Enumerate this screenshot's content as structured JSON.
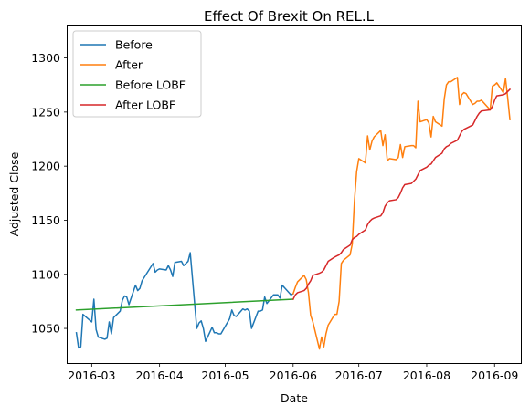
{
  "chart_data": {
    "type": "line",
    "title": "Effect Of Brexit On REL.L",
    "xlabel": "Date",
    "ylabel": "Adjusted Close",
    "x_range": [
      "2016-02-19",
      "2016-09-13"
    ],
    "ylim": [
      1018,
      1330
    ],
    "x_ticks": [
      "2016-03",
      "2016-04",
      "2016-05",
      "2016-06",
      "2016-07",
      "2016-08",
      "2016-09"
    ],
    "y_ticks": [
      1050,
      1100,
      1150,
      1200,
      1250,
      1300
    ],
    "grid": false,
    "legend_position": "top-left",
    "series": [
      {
        "name": "Before",
        "color": "#1f77b4",
        "x": [
          "2016-02-23",
          "2016-02-24",
          "2016-02-25",
          "2016-02-26",
          "2016-03-01",
          "2016-03-02",
          "2016-03-03",
          "2016-03-04",
          "2016-03-07",
          "2016-03-08",
          "2016-03-09",
          "2016-03-10",
          "2016-03-11",
          "2016-03-14",
          "2016-03-15",
          "2016-03-16",
          "2016-03-17",
          "2016-03-18",
          "2016-03-21",
          "2016-03-22",
          "2016-03-23",
          "2016-03-24",
          "2016-03-29",
          "2016-03-30",
          "2016-03-31",
          "2016-04-01",
          "2016-04-04",
          "2016-04-05",
          "2016-04-06",
          "2016-04-07",
          "2016-04-08",
          "2016-04-11",
          "2016-04-12",
          "2016-04-13",
          "2016-04-14",
          "2016-04-15",
          "2016-04-18",
          "2016-04-19",
          "2016-04-20",
          "2016-04-21",
          "2016-04-22",
          "2016-04-25",
          "2016-04-26",
          "2016-04-27",
          "2016-04-28",
          "2016-04-29",
          "2016-05-03",
          "2016-05-04",
          "2016-05-05",
          "2016-05-06",
          "2016-05-09",
          "2016-05-10",
          "2016-05-11",
          "2016-05-12",
          "2016-05-13",
          "2016-05-16",
          "2016-05-17",
          "2016-05-18",
          "2016-05-19",
          "2016-05-20",
          "2016-05-23",
          "2016-05-24",
          "2016-05-25",
          "2016-05-26",
          "2016-05-27",
          "2016-05-31",
          "2016-06-01"
        ],
        "y": [
          1046,
          1032,
          1033,
          1063,
          1056,
          1077,
          1049,
          1042,
          1040,
          1041,
          1056,
          1045,
          1060,
          1066,
          1076,
          1080,
          1079,
          1072,
          1090,
          1085,
          1087,
          1094,
          1110,
          1102,
          1104,
          1105,
          1104,
          1108,
          1104,
          1098,
          1111,
          1112,
          1108,
          1110,
          1112,
          1120,
          1050,
          1055,
          1057,
          1050,
          1038,
          1051,
          1046,
          1046,
          1045,
          1045,
          1059,
          1067,
          1062,
          1061,
          1068,
          1067,
          1068,
          1066,
          1050,
          1066,
          1066,
          1067,
          1079,
          1073,
          1081,
          1081,
          1081,
          1078,
          1090,
          1081,
          1082
        ]
      },
      {
        "name": "After",
        "color": "#ff7f0e",
        "x": [
          "2016-06-01",
          "2016-06-02",
          "2016-06-03",
          "2016-06-06",
          "2016-06-07",
          "2016-06-08",
          "2016-06-09",
          "2016-06-10",
          "2016-06-13",
          "2016-06-14",
          "2016-06-15",
          "2016-06-16",
          "2016-06-17",
          "2016-06-20",
          "2016-06-21",
          "2016-06-22",
          "2016-06-23",
          "2016-06-24",
          "2016-06-27",
          "2016-06-28",
          "2016-06-29",
          "2016-06-30",
          "2016-07-01",
          "2016-07-04",
          "2016-07-05",
          "2016-07-06",
          "2016-07-07",
          "2016-07-08",
          "2016-07-11",
          "2016-07-12",
          "2016-07-13",
          "2016-07-14",
          "2016-07-15",
          "2016-07-18",
          "2016-07-19",
          "2016-07-20",
          "2016-07-21",
          "2016-07-22",
          "2016-07-25",
          "2016-07-26",
          "2016-07-27",
          "2016-07-28",
          "2016-07-29",
          "2016-08-01",
          "2016-08-02",
          "2016-08-03",
          "2016-08-04",
          "2016-08-05",
          "2016-08-08",
          "2016-08-09",
          "2016-08-10",
          "2016-08-11",
          "2016-08-12",
          "2016-08-15",
          "2016-08-16",
          "2016-08-17",
          "2016-08-18",
          "2016-08-19",
          "2016-08-22",
          "2016-08-23",
          "2016-08-24",
          "2016-08-25",
          "2016-08-26",
          "2016-08-30",
          "2016-08-31",
          "2016-09-01",
          "2016-09-02",
          "2016-09-05",
          "2016-09-06",
          "2016-09-07",
          "2016-09-08"
        ],
        "y": [
          1082,
          1088,
          1093,
          1099,
          1095,
          1083,
          1062,
          1056,
          1031,
          1042,
          1033,
          1045,
          1053,
          1063,
          1063,
          1075,
          1110,
          1113,
          1118,
          1128,
          1168,
          1195,
          1207,
          1203,
          1228,
          1215,
          1223,
          1227,
          1233,
          1219,
          1229,
          1205,
          1207,
          1206,
          1208,
          1220,
          1208,
          1218,
          1219,
          1219,
          1217,
          1260,
          1241,
          1243,
          1240,
          1227,
          1246,
          1241,
          1237,
          1262,
          1275,
          1278,
          1278,
          1282,
          1257,
          1266,
          1268,
          1267,
          1257,
          1258,
          1260,
          1260,
          1261,
          1252,
          1274,
          1275,
          1277,
          1268,
          1281,
          1263,
          1243
        ]
      },
      {
        "name": "Before LOBF",
        "color": "#2ca02c",
        "x": [
          "2016-02-23",
          "2016-06-01"
        ],
        "y": [
          1067,
          1077
        ]
      },
      {
        "name": "After LOBF",
        "color": "#d62728",
        "x": [
          "2016-06-01",
          "2016-06-02",
          "2016-06-03",
          "2016-06-06",
          "2016-06-07",
          "2016-06-08",
          "2016-06-09",
          "2016-06-10",
          "2016-06-13",
          "2016-06-14",
          "2016-06-15",
          "2016-06-16",
          "2016-06-17",
          "2016-06-20",
          "2016-06-21",
          "2016-06-22",
          "2016-06-23",
          "2016-06-24",
          "2016-06-27",
          "2016-06-28",
          "2016-06-29",
          "2016-06-30",
          "2016-07-01",
          "2016-07-04",
          "2016-07-05",
          "2016-07-06",
          "2016-07-07",
          "2016-07-08",
          "2016-07-11",
          "2016-07-12",
          "2016-07-13",
          "2016-07-14",
          "2016-07-15",
          "2016-07-18",
          "2016-07-19",
          "2016-07-20",
          "2016-07-21",
          "2016-07-22",
          "2016-07-25",
          "2016-07-26",
          "2016-07-27",
          "2016-07-28",
          "2016-07-29",
          "2016-08-01",
          "2016-08-02",
          "2016-08-03",
          "2016-08-04",
          "2016-08-05",
          "2016-08-08",
          "2016-08-09",
          "2016-08-10",
          "2016-08-11",
          "2016-08-12",
          "2016-08-15",
          "2016-08-16",
          "2016-08-17",
          "2016-08-18",
          "2016-08-19",
          "2016-08-22",
          "2016-08-23",
          "2016-08-24",
          "2016-08-25",
          "2016-08-26",
          "2016-08-30",
          "2016-08-31",
          "2016-09-01",
          "2016-09-02",
          "2016-09-05",
          "2016-09-06",
          "2016-09-07",
          "2016-09-08"
        ],
        "y": [
          1077,
          1081,
          1083,
          1085,
          1087,
          1091,
          1094,
          1099,
          1101,
          1102,
          1104,
          1108,
          1112,
          1116,
          1117,
          1118,
          1120,
          1123,
          1127,
          1132,
          1134,
          1135,
          1137,
          1141,
          1146,
          1149,
          1151,
          1152,
          1154,
          1157,
          1163,
          1166,
          1168,
          1169,
          1171,
          1175,
          1180,
          1183,
          1184,
          1186,
          1188,
          1192,
          1196,
          1199,
          1201,
          1202,
          1205,
          1208,
          1212,
          1216,
          1218,
          1219,
          1221,
          1224,
          1228,
          1232,
          1234,
          1235,
          1238,
          1242,
          1246,
          1249,
          1251,
          1252,
          1255,
          1261,
          1265,
          1266,
          1267,
          1269,
          1271
        ]
      }
    ]
  }
}
